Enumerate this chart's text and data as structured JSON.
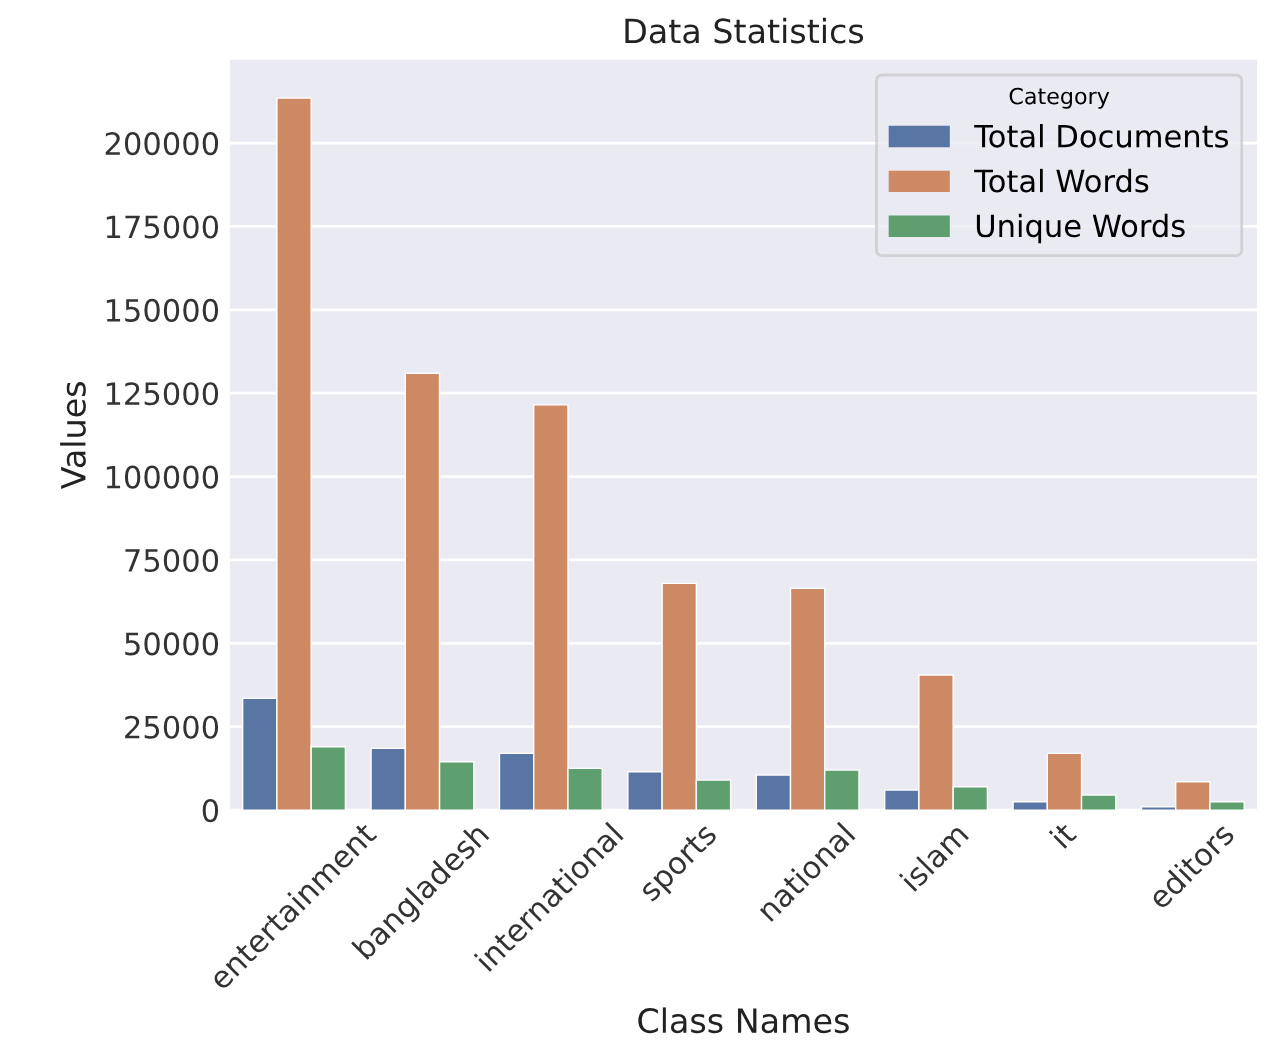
{
  "chart_data": {
    "type": "bar",
    "title": "Data Statistics",
    "xlabel": "Class Names",
    "ylabel": "Values",
    "legend_title": "Category",
    "categories": [
      "entertainment",
      "bangladesh",
      "international",
      "sports",
      "national",
      "islam",
      "it",
      "editors"
    ],
    "series": [
      {
        "name": "Total Documents",
        "color": "#5975a4",
        "values": [
          33500,
          18500,
          17000,
          11500,
          10500,
          6000,
          2500,
          1000
        ]
      },
      {
        "name": "Total Words",
        "color": "#cc8963",
        "values": [
          213500,
          131000,
          121500,
          68000,
          66500,
          40500,
          17000,
          8500
        ]
      },
      {
        "name": "Unique Words",
        "color": "#5f9e6e",
        "values": [
          19000,
          14500,
          12500,
          9000,
          12000,
          7000,
          4500,
          2500
        ]
      }
    ],
    "ylim": [
      0,
      225000
    ],
    "yticks": [
      0,
      25000,
      50000,
      75000,
      100000,
      125000,
      150000,
      175000,
      200000
    ],
    "grid": "y",
    "legend": "top right"
  }
}
